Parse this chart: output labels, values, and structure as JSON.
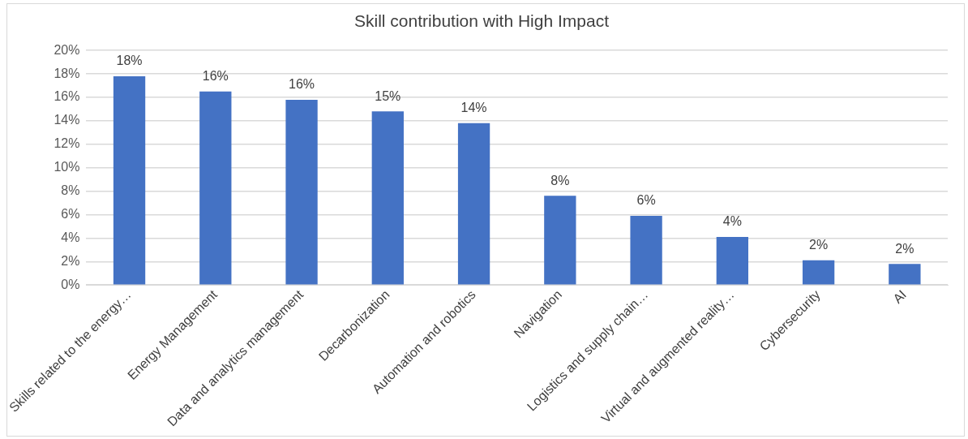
{
  "chart_data": {
    "type": "bar",
    "title": "Skill contribution with High Impact",
    "categories": [
      "Skills related to the energy…",
      "Energy Management",
      "Data and analytics management",
      "Decarbonization",
      "Automation and robotics",
      "Navigation",
      "Logistics and supply chain…",
      "Virtual and augmented reality…",
      "Cybersecurity",
      "AI"
    ],
    "values": [
      17.8,
      16.5,
      15.8,
      14.8,
      13.8,
      7.6,
      5.9,
      4.1,
      2.1,
      1.8
    ],
    "value_labels": [
      "18%",
      "16%",
      "16%",
      "15%",
      "14%",
      "8%",
      "6%",
      "4%",
      "2%",
      "2%"
    ],
    "color": "#4472c4",
    "ylim": [
      0,
      20
    ],
    "yticks": [
      {
        "value": 0,
        "label": "0%"
      },
      {
        "value": 2,
        "label": "2%"
      },
      {
        "value": 4,
        "label": "4%"
      },
      {
        "value": 6,
        "label": "6%"
      },
      {
        "value": 8,
        "label": "8%"
      },
      {
        "value": 10,
        "label": "10%"
      },
      {
        "value": 12,
        "label": "12%"
      },
      {
        "value": 14,
        "label": "14%"
      },
      {
        "value": 16,
        "label": "16%"
      },
      {
        "value": 18,
        "label": "18%"
      },
      {
        "value": 20,
        "label": "20%"
      }
    ],
    "grid": "y"
  }
}
